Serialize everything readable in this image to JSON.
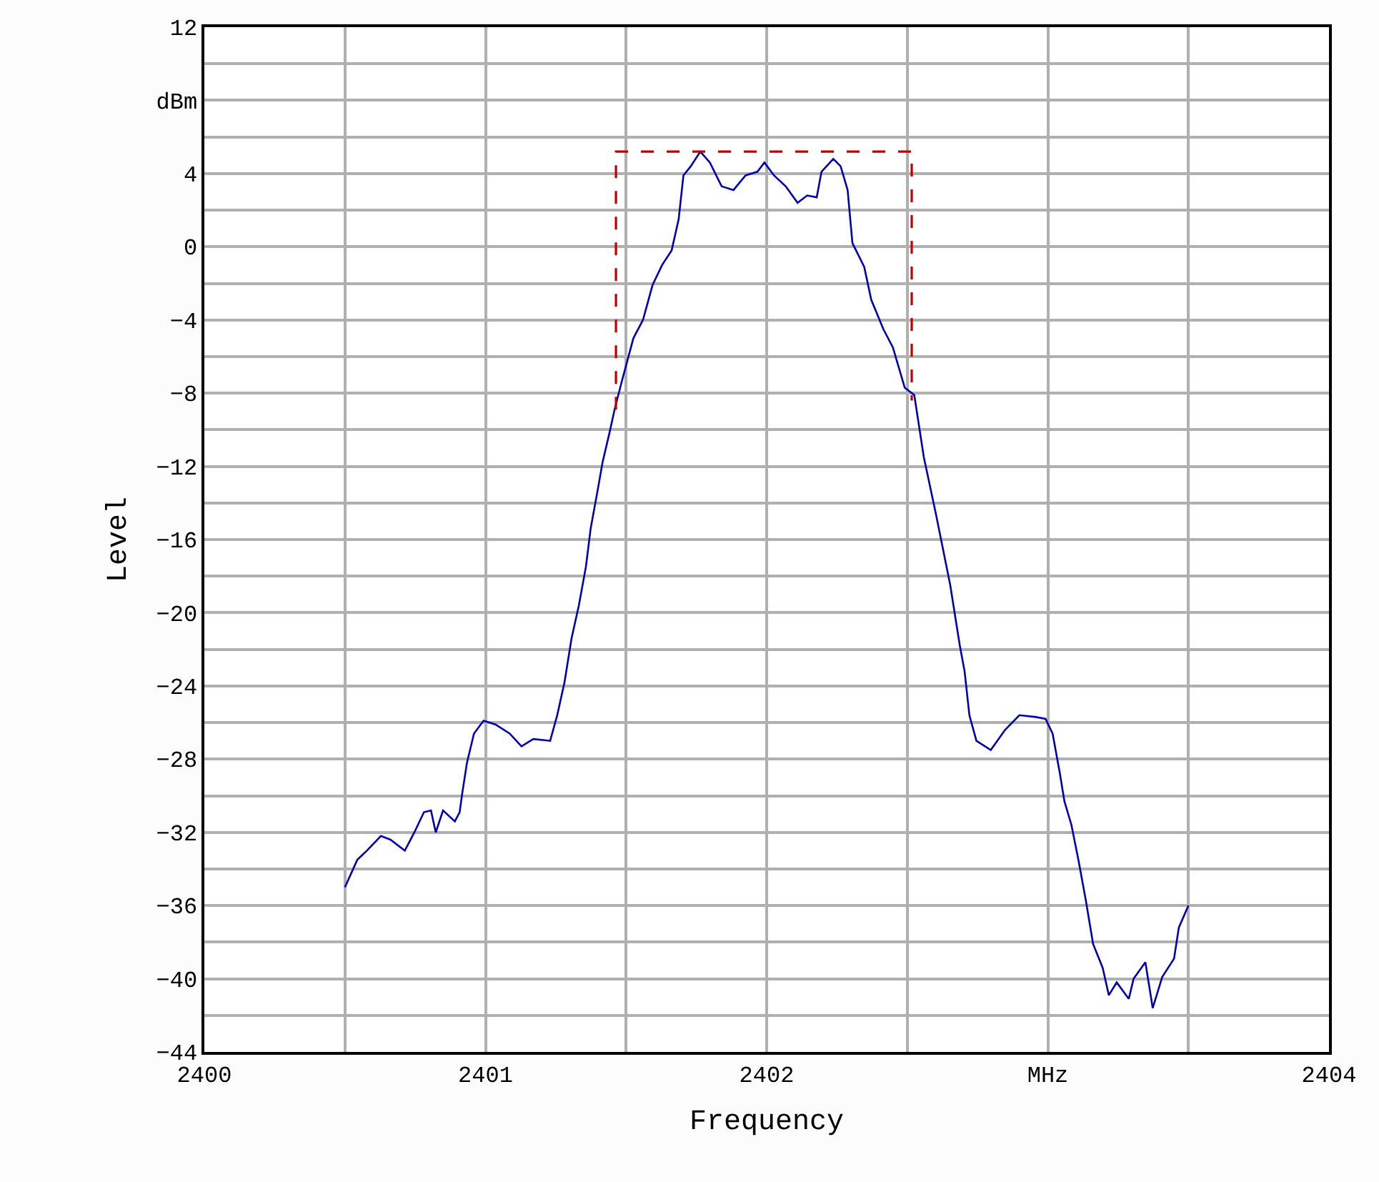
{
  "chart_data": {
    "type": "line",
    "xlabel": "Frequency",
    "ylabel": "Level",
    "xlim": [
      2400,
      2404
    ],
    "ylim": [
      -44,
      12
    ],
    "xticks": [
      2400,
      {
        "value": 2400.5,
        "label": null
      },
      2401,
      {
        "value": 2401.5,
        "label": null
      },
      2402,
      {
        "value": 2402.5,
        "label": null
      },
      {
        "value": 2403,
        "label": "MHz"
      },
      {
        "value": 2403.5,
        "label": null
      },
      2404
    ],
    "yticks": [
      -44,
      {
        "value": -42,
        "label": null
      },
      -40,
      {
        "value": -38,
        "label": null
      },
      -36,
      {
        "value": -34,
        "label": null
      },
      -32,
      {
        "value": -30,
        "label": null
      },
      -28,
      {
        "value": -26,
        "label": null
      },
      -24,
      {
        "value": -22,
        "label": null
      },
      -20,
      {
        "value": -18,
        "label": null
      },
      -16,
      {
        "value": -14,
        "label": null
      },
      -12,
      {
        "value": -10,
        "label": null
      },
      -8,
      {
        "value": -6,
        "label": null
      },
      -4,
      {
        "value": -2,
        "label": null
      },
      0,
      {
        "value": 2,
        "label": null
      },
      4,
      {
        "value": 6,
        "label": null
      },
      {
        "value": 8,
        "label": "dBm"
      },
      {
        "value": 10,
        "label": null
      },
      12
    ],
    "grid": true,
    "marker": "none",
    "series": [
      {
        "color": "#0000b0",
        "line_style": "solid",
        "x": [
          2400.5,
          2400.544,
          2400.578,
          2400.628,
          2400.662,
          2400.713,
          2400.747,
          2400.781,
          2400.806,
          2400.823,
          2400.849,
          2400.891,
          2400.908,
          2400.917,
          2400.934,
          2400.959,
          2400.993,
          2401.035,
          2401.086,
          2401.128,
          2401.17,
          2401.23,
          2401.255,
          2401.281,
          2401.306,
          2401.332,
          2401.357,
          2401.374,
          2401.399,
          2401.416,
          2401.442,
          2401.459,
          2401.484,
          2401.526,
          2401.56,
          2401.594,
          2401.628,
          2401.662,
          2401.687,
          2401.704,
          2401.73,
          2401.764,
          2401.798,
          2401.84,
          2401.882,
          2401.925,
          2401.967,
          2401.992,
          2402.026,
          2402.068,
          2402.11,
          2402.144,
          2402.178,
          2402.195,
          2402.237,
          2402.263,
          2402.288,
          2402.305,
          2402.347,
          2402.372,
          2402.415,
          2402.449,
          2402.491,
          2402.525,
          2402.559,
          2402.602,
          2402.653,
          2402.687,
          2402.704,
          2402.721,
          2402.746,
          2402.797,
          2402.848,
          2402.899,
          2402.958,
          2402.992,
          2403.017,
          2403.042,
          2403.059,
          2403.084,
          2403.11,
          2403.135,
          2403.161,
          2403.195,
          2403.217,
          2403.245,
          2403.288,
          2403.305,
          2403.347,
          2403.373,
          2403.407,
          2403.449,
          2403.466,
          2403.5
        ],
        "values": [
          -35.0,
          -33.5,
          -33.0,
          -32.2,
          -32.4,
          -33.0,
          -32.0,
          -30.9,
          -30.8,
          -32.0,
          -30.8,
          -31.4,
          -30.9,
          -29.9,
          -28.2,
          -26.6,
          -25.9,
          -26.1,
          -26.6,
          -27.3,
          -26.9,
          -27.0,
          -25.6,
          -23.8,
          -21.4,
          -19.6,
          -17.5,
          -15.4,
          -13.3,
          -11.8,
          -10.1,
          -8.9,
          -7.4,
          -5.0,
          -4.0,
          -2.1,
          -1.0,
          -0.2,
          1.5,
          3.9,
          4.4,
          5.2,
          4.6,
          3.3,
          3.1,
          3.9,
          4.1,
          4.6,
          3.9,
          3.3,
          2.4,
          2.8,
          2.7,
          4.1,
          4.8,
          4.4,
          3.1,
          0.2,
          -1.1,
          -2.9,
          -4.5,
          -5.5,
          -7.7,
          -8.1,
          -11.5,
          -14.6,
          -18.5,
          -21.8,
          -23.2,
          -25.6,
          -27.0,
          -27.5,
          -26.4,
          -25.6,
          -25.7,
          -25.8,
          -26.6,
          -28.7,
          -30.3,
          -31.6,
          -33.6,
          -35.7,
          -38.1,
          -39.4,
          -40.9,
          -40.2,
          -41.1,
          -40.0,
          -39.1,
          -41.6,
          -39.9,
          -38.9,
          -37.2,
          -36.0
        ]
      },
      {
        "color": "#c00000",
        "line_style": "dashed",
        "x": [
          2401.464,
          2401.464,
          2402.516,
          2402.516
        ],
        "values": [
          -8.9,
          5.2,
          5.2,
          -8.4
        ]
      }
    ]
  }
}
